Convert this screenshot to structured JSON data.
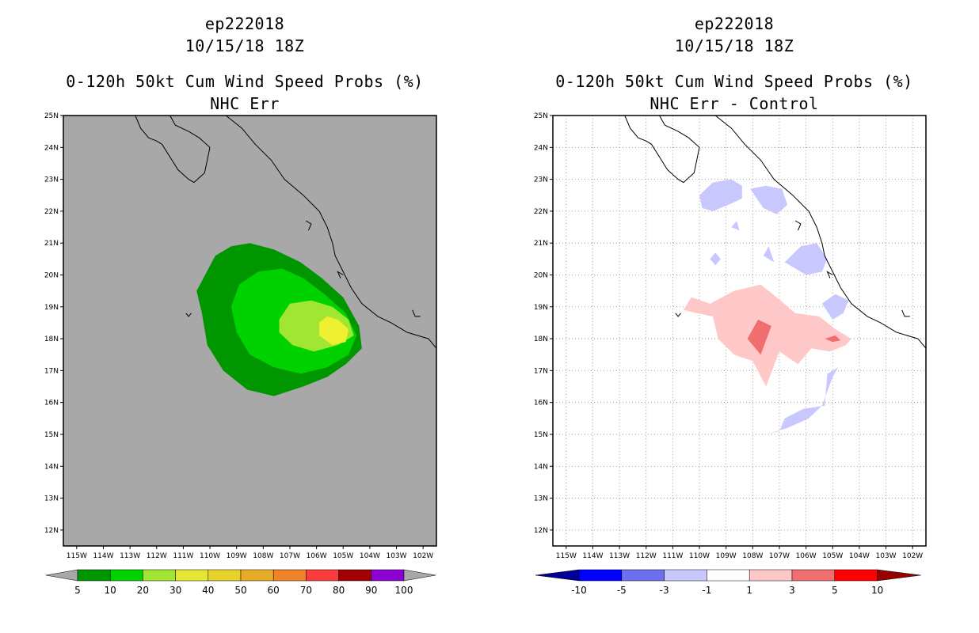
{
  "chart_data": [
    {
      "type": "heatmap",
      "storm_id": "ep222018",
      "datetime": "10/15/18 18Z",
      "title": "0-120h 50kt Cum Wind Speed Probs (%)",
      "subtitle": "NHC Err",
      "xlim": [
        -115.5,
        -101.5
      ],
      "ylim": [
        11.5,
        25
      ],
      "x_ticks": [
        "115W",
        "114W",
        "113W",
        "112W",
        "111W",
        "110W",
        "109W",
        "108W",
        "107W",
        "106W",
        "105W",
        "104W",
        "103W",
        "102W"
      ],
      "y_ticks": [
        "25N",
        "24N",
        "23N",
        "22N",
        "21N",
        "20N",
        "19N",
        "18N",
        "17N",
        "16N",
        "15N",
        "14N",
        "13N",
        "12N"
      ],
      "background_color": "#a8a8a8",
      "grid": false,
      "colorbar": {
        "labels": [
          "5",
          "10",
          "20",
          "30",
          "40",
          "50",
          "60",
          "70",
          "80",
          "90",
          "100"
        ],
        "colors": [
          "#009600",
          "#00d200",
          "#a0e632",
          "#e6e632",
          "#e6d228",
          "#e6ac28",
          "#f08228",
          "#fa3c3c",
          "#a00000",
          "#8c00d2"
        ]
      },
      "contours": [
        {
          "level": "5-10",
          "color": "#009600",
          "points": [
            [
              -110.5,
              19.5
            ],
            [
              -109.8,
              20.6
            ],
            [
              -109.2,
              20.9
            ],
            [
              -108.5,
              21.0
            ],
            [
              -107.6,
              20.8
            ],
            [
              -106.6,
              20.4
            ],
            [
              -105.8,
              19.9
            ],
            [
              -105.0,
              19.3
            ],
            [
              -104.4,
              18.4
            ],
            [
              -104.3,
              17.7
            ],
            [
              -104.9,
              17.2
            ],
            [
              -105.6,
              16.8
            ],
            [
              -106.5,
              16.5
            ],
            [
              -107.6,
              16.2
            ],
            [
              -108.6,
              16.4
            ],
            [
              -109.5,
              17.0
            ],
            [
              -110.1,
              17.8
            ],
            [
              -110.3,
              18.8
            ]
          ]
        },
        {
          "level": "10-20",
          "color": "#00d200",
          "points": [
            [
              -109.2,
              19.0
            ],
            [
              -108.9,
              19.7
            ],
            [
              -108.2,
              20.1
            ],
            [
              -107.3,
              20.2
            ],
            [
              -106.5,
              19.9
            ],
            [
              -105.7,
              19.4
            ],
            [
              -104.9,
              18.8
            ],
            [
              -104.5,
              18.1
            ],
            [
              -104.8,
              17.5
            ],
            [
              -105.6,
              17.1
            ],
            [
              -106.6,
              16.9
            ],
            [
              -107.6,
              17.1
            ],
            [
              -108.5,
              17.5
            ],
            [
              -109.0,
              18.2
            ]
          ]
        },
        {
          "level": "20-30",
          "color": "#a0e632",
          "points": [
            [
              -107.4,
              18.6
            ],
            [
              -107.0,
              19.1
            ],
            [
              -106.2,
              19.2
            ],
            [
              -105.4,
              19.0
            ],
            [
              -104.8,
              18.6
            ],
            [
              -104.6,
              18.1
            ],
            [
              -105.2,
              17.8
            ],
            [
              -106.1,
              17.6
            ],
            [
              -106.9,
              17.8
            ],
            [
              -107.4,
              18.2
            ]
          ]
        },
        {
          "level": "30-40",
          "color": "#f0f032",
          "points": [
            [
              -105.9,
              18.5
            ],
            [
              -105.6,
              18.7
            ],
            [
              -105.2,
              18.6
            ],
            [
              -104.8,
              18.3
            ],
            [
              -104.9,
              17.9
            ],
            [
              -105.4,
              17.8
            ],
            [
              -105.9,
              18.1
            ]
          ]
        }
      ]
    },
    {
      "type": "heatmap",
      "storm_id": "ep222018",
      "datetime": "10/15/18 18Z",
      "title": "0-120h 50kt Cum Wind Speed Probs (%)",
      "subtitle": "NHC Err - Control",
      "xlim": [
        -115.5,
        -101.5
      ],
      "ylim": [
        11.5,
        25
      ],
      "x_ticks": [
        "115W",
        "114W",
        "113W",
        "112W",
        "111W",
        "110W",
        "109W",
        "108W",
        "107W",
        "106W",
        "105W",
        "104W",
        "103W",
        "102W"
      ],
      "y_ticks": [
        "25N",
        "24N",
        "23N",
        "22N",
        "21N",
        "20N",
        "19N",
        "18N",
        "17N",
        "16N",
        "15N",
        "14N",
        "13N",
        "12N"
      ],
      "background_color": "#ffffff",
      "grid": true,
      "colorbar": {
        "labels": [
          "-10",
          "-5",
          "-3",
          "-1",
          "1",
          "3",
          "5",
          "10"
        ],
        "colors": [
          "#000096",
          "#0000ff",
          "#6e6ef0",
          "#c8c8ff",
          "#ffffff",
          "#ffc8c8",
          "#f06e6e",
          "#ff0000",
          "#960000"
        ]
      },
      "contours": [
        {
          "level": "-3 to -1",
          "color": "#c8c8ff",
          "points": [
            [
              -110.0,
              22.5
            ],
            [
              -109.5,
              22.9
            ],
            [
              -108.8,
              23.0
            ],
            [
              -108.4,
              22.8
            ],
            [
              -108.4,
              22.4
            ],
            [
              -108.9,
              22.2
            ],
            [
              -109.5,
              22.0
            ],
            [
              -109.9,
              22.1
            ]
          ]
        },
        {
          "level": "-3 to -1",
          "color": "#c8c8ff",
          "points": [
            [
              -108.1,
              22.7
            ],
            [
              -107.5,
              22.8
            ],
            [
              -106.9,
              22.7
            ],
            [
              -106.7,
              22.2
            ],
            [
              -107.1,
              21.9
            ],
            [
              -107.6,
              22.1
            ]
          ]
        },
        {
          "level": "-3 to -1",
          "color": "#c8c8ff",
          "points": [
            [
              -106.8,
              20.4
            ],
            [
              -106.2,
              20.9
            ],
            [
              -105.6,
              21.0
            ],
            [
              -105.2,
              20.5
            ],
            [
              -105.4,
              20.1
            ],
            [
              -106.0,
              20.0
            ]
          ]
        },
        {
          "level": "-3 to -1",
          "color": "#c8c8ff",
          "points": [
            [
              -109.6,
              20.5
            ],
            [
              -109.4,
              20.7
            ],
            [
              -109.2,
              20.5
            ],
            [
              -109.4,
              20.3
            ]
          ]
        },
        {
          "level": "-3 to -1",
          "color": "#c8c8ff",
          "points": [
            [
              -107.6,
              20.6
            ],
            [
              -107.4,
              20.9
            ],
            [
              -107.2,
              20.4
            ]
          ]
        },
        {
          "level": "-3 to -1",
          "color": "#c8c8ff",
          "points": [
            [
              -108.8,
              21.5
            ],
            [
              -108.6,
              21.7
            ],
            [
              -108.5,
              21.4
            ]
          ]
        },
        {
          "level": "-3 to -1",
          "color": "#c8c8ff",
          "points": [
            [
              -105.4,
              19.1
            ],
            [
              -104.9,
              19.4
            ],
            [
              -104.4,
              19.2
            ],
            [
              -104.6,
              18.8
            ],
            [
              -105.0,
              18.6
            ]
          ]
        },
        {
          "level": "-3 to -1",
          "color": "#c8c8ff",
          "points": [
            [
              -107.5,
              15.0
            ],
            [
              -106.7,
              15.2
            ],
            [
              -105.9,
              15.5
            ],
            [
              -105.4,
              15.9
            ],
            [
              -105.0,
              16.8
            ],
            [
              -104.8,
              17.1
            ],
            [
              -105.2,
              16.9
            ],
            [
              -105.3,
              15.9
            ],
            [
              -106.1,
              15.8
            ],
            [
              -106.8,
              15.5
            ],
            [
              -107.0,
              15.1
            ]
          ]
        },
        {
          "level": "1 to 3",
          "color": "#ffc8c8",
          "points": [
            [
              -110.6,
              18.9
            ],
            [
              -110.3,
              19.3
            ],
            [
              -109.6,
              19.1
            ],
            [
              -108.7,
              19.5
            ],
            [
              -107.7,
              19.7
            ],
            [
              -107.1,
              19.3
            ],
            [
              -106.4,
              18.8
            ],
            [
              -105.5,
              18.7
            ],
            [
              -104.9,
              18.3
            ],
            [
              -104.3,
              18.0
            ],
            [
              -104.5,
              17.8
            ],
            [
              -105.1,
              17.6
            ],
            [
              -105.8,
              17.7
            ],
            [
              -106.3,
              17.2
            ],
            [
              -107.0,
              17.6
            ],
            [
              -107.5,
              16.5
            ],
            [
              -108.0,
              17.3
            ],
            [
              -108.7,
              17.5
            ],
            [
              -109.3,
              18.0
            ],
            [
              -109.5,
              18.7
            ],
            [
              -110.1,
              18.8
            ]
          ]
        },
        {
          "level": "3 to 5",
          "color": "#f06e6e",
          "points": [
            [
              -108.2,
              18.0
            ],
            [
              -107.8,
              18.6
            ],
            [
              -107.3,
              18.4
            ],
            [
              -107.7,
              17.5
            ]
          ]
        },
        {
          "level": "3 to 5",
          "color": "#f06e6e",
          "points": [
            [
              -105.3,
              18.0
            ],
            [
              -104.9,
              18.1
            ],
            [
              -104.7,
              17.95
            ],
            [
              -105.0,
              17.9
            ]
          ]
        }
      ]
    }
  ],
  "coastline": {
    "baja": [
      [
        -112.8,
        25.0
      ],
      [
        -112.6,
        24.6
      ],
      [
        -112.3,
        24.3
      ],
      [
        -112.0,
        24.2
      ],
      [
        -111.8,
        24.1
      ],
      [
        -111.5,
        23.7
      ],
      [
        -111.2,
        23.3
      ],
      [
        -110.8,
        23.0
      ],
      [
        -110.6,
        22.9
      ],
      [
        -110.2,
        23.2
      ],
      [
        -110.1,
        23.6
      ],
      [
        -110.0,
        24.0
      ],
      [
        -110.4,
        24.3
      ],
      [
        -110.8,
        24.5
      ],
      [
        -111.3,
        24.7
      ],
      [
        -111.5,
        25.0
      ]
    ],
    "mainland": [
      [
        -109.4,
        25.0
      ],
      [
        -108.8,
        24.6
      ],
      [
        -108.3,
        24.1
      ],
      [
        -107.7,
        23.6
      ],
      [
        -107.2,
        23.0
      ],
      [
        -106.5,
        22.5
      ],
      [
        -105.9,
        22.0
      ],
      [
        -105.6,
        21.5
      ],
      [
        -105.4,
        21.0
      ],
      [
        -105.3,
        20.6
      ],
      [
        -105.0,
        20.1
      ],
      [
        -104.7,
        19.6
      ],
      [
        -104.3,
        19.1
      ],
      [
        -103.7,
        18.7
      ],
      [
        -103.2,
        18.5
      ],
      [
        -102.6,
        18.2
      ],
      [
        -101.8,
        18.0
      ],
      [
        -101.5,
        17.7
      ]
    ],
    "islands": [
      [
        [
          -106.4,
          21.7
        ],
        [
          -106.2,
          21.6
        ],
        [
          -106.3,
          21.4
        ]
      ],
      [
        [
          -110.9,
          18.8
        ],
        [
          -110.8,
          18.7
        ],
        [
          -110.7,
          18.8
        ]
      ],
      [
        [
          -105.0,
          20.0
        ],
        [
          -105.2,
          20.1
        ],
        [
          -105.1,
          19.9
        ]
      ],
      [
        [
          -102.4,
          18.9
        ],
        [
          -102.3,
          18.7
        ],
        [
          -102.1,
          18.7
        ]
      ]
    ]
  }
}
